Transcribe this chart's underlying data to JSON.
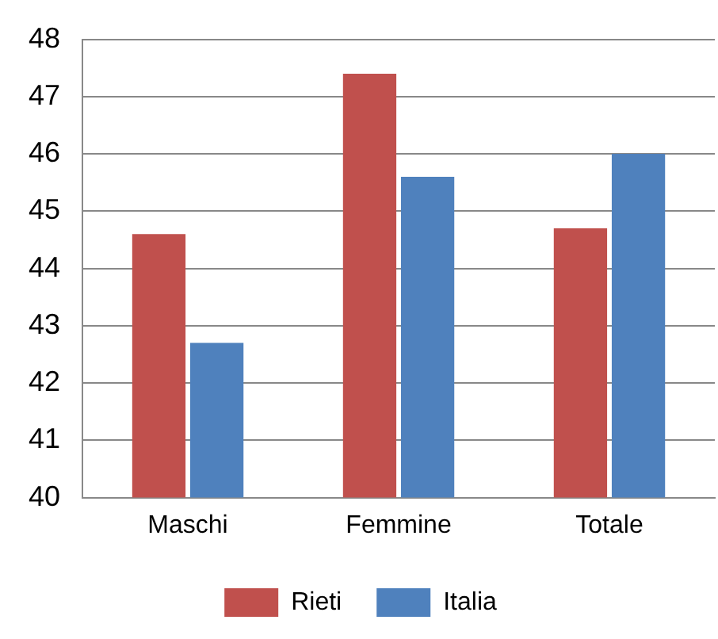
{
  "chart_data": {
    "type": "bar",
    "categories": [
      "Maschi",
      "Femmine",
      "Totale"
    ],
    "series": [
      {
        "name": "Rieti",
        "color": "#c0504d",
        "values": [
          44.6,
          47.4,
          44.7
        ]
      },
      {
        "name": "Italia",
        "color": "#4f81bd",
        "values": [
          42.7,
          45.6,
          46.0
        ]
      }
    ],
    "ylim": [
      40,
      48
    ],
    "yticks": [
      40,
      41,
      42,
      43,
      44,
      45,
      46,
      47,
      48
    ],
    "grid": "y",
    "legend": "bottom"
  }
}
